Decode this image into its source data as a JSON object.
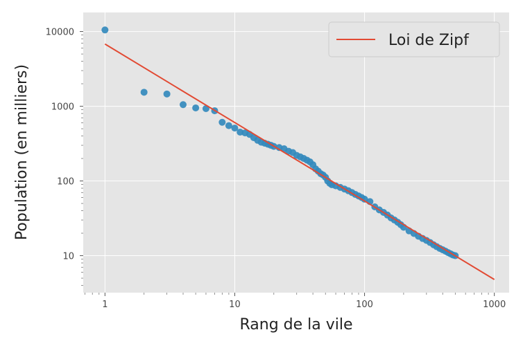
{
  "chart_data": {
    "type": "scatter",
    "xlabel": "Rang de la vile",
    "ylabel": "Population (en milliers)",
    "xscale": "log",
    "yscale": "log",
    "xlim": [
      0.68,
      1300
    ],
    "ylim": [
      3.2,
      18000
    ],
    "xticks": [
      {
        "value": 1,
        "label": "1"
      },
      {
        "value": 10,
        "label": "10"
      },
      {
        "value": 100,
        "label": "100"
      },
      {
        "value": 1000,
        "label": "1000"
      }
    ],
    "yticks": [
      {
        "value": 10,
        "label": "10"
      },
      {
        "value": 100,
        "label": "100"
      },
      {
        "value": 1000,
        "label": "1000"
      },
      {
        "value": 10000,
        "label": "10000"
      }
    ],
    "grid": true,
    "legend": {
      "placement": "top-right",
      "entries": [
        "Loi de Zipf"
      ]
    },
    "series": [
      {
        "kind": "points",
        "color": "#348abd",
        "x": [
          1,
          2,
          3,
          4,
          5,
          6,
          7,
          8,
          9,
          10,
          11,
          12,
          13,
          14,
          15,
          16,
          17,
          18,
          19,
          20,
          22,
          24,
          26,
          28,
          30,
          32,
          34,
          36,
          38,
          40,
          42,
          44,
          46,
          48,
          50,
          52,
          54,
          56,
          60,
          65,
          70,
          75,
          80,
          85,
          90,
          95,
          100,
          110,
          120,
          130,
          140,
          150,
          160,
          170,
          180,
          190,
          200,
          220,
          240,
          260,
          280,
          300,
          320,
          340,
          360,
          380,
          400,
          420,
          440,
          460,
          480,
          500
        ],
        "y": [
          10500,
          1540,
          1460,
          1050,
          950,
          930,
          870,
          610,
          550,
          510,
          450,
          440,
          420,
          380,
          350,
          330,
          320,
          310,
          300,
          290,
          280,
          270,
          250,
          240,
          220,
          210,
          200,
          190,
          180,
          165,
          145,
          135,
          125,
          120,
          112,
          100,
          93,
          89,
          86,
          82,
          78,
          74,
          70,
          66,
          63,
          60,
          57,
          53,
          45,
          41,
          38,
          35,
          32,
          30,
          28,
          26,
          24,
          21.5,
          19.8,
          18.2,
          17,
          16,
          15,
          14,
          13.2,
          12.5,
          12,
          11.5,
          11,
          10.6,
          10.2,
          10
        ]
      },
      {
        "kind": "line",
        "name": "Loi de Zipf",
        "color": "#e24a33",
        "x": [
          1,
          1000
        ],
        "y": [
          6800,
          4.8
        ]
      }
    ]
  }
}
